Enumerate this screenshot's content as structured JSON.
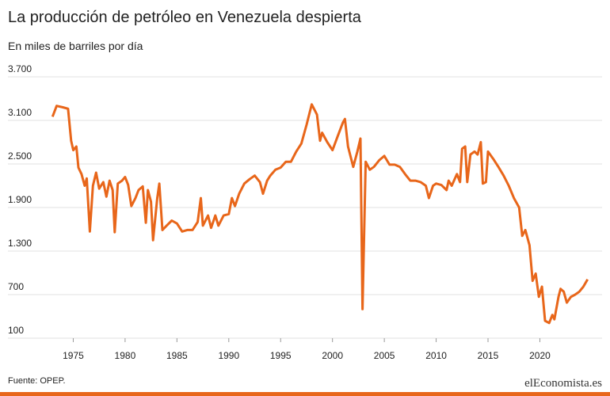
{
  "chart_data": {
    "type": "line",
    "title": "La producción de petróleo en Venezuela despierta",
    "subtitle": "En miles de barriles por día",
    "source": "Fuente: OPEP.",
    "logo": "elEconomista.es",
    "color": "#e8661a",
    "grid": true,
    "x": [
      1973.0,
      1973.4,
      1974.0,
      1974.5,
      1974.8,
      1975.0,
      1975.3,
      1975.5,
      1975.8,
      1976.1,
      1976.3,
      1976.6,
      1976.9,
      1977.2,
      1977.5,
      1977.9,
      1978.2,
      1978.5,
      1978.8,
      1979.0,
      1979.3,
      1979.7,
      1980.0,
      1980.3,
      1980.6,
      1981.0,
      1981.3,
      1981.7,
      1982.0,
      1982.2,
      1982.5,
      1982.7,
      1983.1,
      1983.3,
      1983.6,
      1984.0,
      1984.5,
      1985.0,
      1985.5,
      1986.0,
      1986.5,
      1987.0,
      1987.3,
      1987.5,
      1988.0,
      1988.3,
      1988.7,
      1989.0,
      1989.5,
      1990.0,
      1990.3,
      1990.6,
      1991.0,
      1991.5,
      1992.0,
      1992.5,
      1993.0,
      1993.3,
      1993.7,
      1994.0,
      1994.5,
      1995.0,
      1995.5,
      1996.0,
      1996.5,
      1997.0,
      1997.5,
      1998.0,
      1998.5,
      1998.8,
      1999.0,
      1999.5,
      2000.0,
      2000.5,
      2001.0,
      2001.2,
      2001.5,
      2002.0,
      2002.4,
      2002.7,
      2002.9,
      2003.2,
      2003.6,
      2004.0,
      2004.5,
      2005.0,
      2005.5,
      2006.0,
      2006.5,
      2007.0,
      2007.5,
      2008.0,
      2008.5,
      2009.0,
      2009.3,
      2009.7,
      2010.0,
      2010.5,
      2011.0,
      2011.2,
      2011.5,
      2012.0,
      2012.3,
      2012.5,
      2012.8,
      2013.0,
      2013.3,
      2013.7,
      2014.0,
      2014.3,
      2014.5,
      2014.8,
      2015.0,
      2015.5,
      2016.0,
      2016.5,
      2017.0,
      2017.5,
      2018.0,
      2018.3,
      2018.6,
      2019.0,
      2019.3,
      2019.6,
      2019.9,
      2020.2,
      2020.5,
      2020.9,
      2021.2,
      2021.4,
      2021.8,
      2022.0,
      2022.3,
      2022.6,
      2023.0,
      2023.4,
      2023.8,
      2024.2,
      2024.6
    ],
    "values": [
      3150,
      3300,
      3280,
      3260,
      2820,
      2690,
      2740,
      2450,
      2360,
      2200,
      2300,
      1570,
      2200,
      2380,
      2160,
      2250,
      2050,
      2270,
      2140,
      1560,
      2230,
      2270,
      2320,
      2210,
      1920,
      2030,
      2140,
      2190,
      1690,
      2140,
      1980,
      1450,
      2030,
      2230,
      1590,
      1650,
      1720,
      1680,
      1570,
      1590,
      1590,
      1700,
      2030,
      1650,
      1790,
      1620,
      1790,
      1650,
      1790,
      1810,
      2030,
      1920,
      2090,
      2230,
      2290,
      2340,
      2250,
      2090,
      2270,
      2340,
      2420,
      2450,
      2530,
      2530,
      2670,
      2780,
      3040,
      3320,
      3180,
      2820,
      2930,
      2800,
      2690,
      2880,
      3070,
      3120,
      2740,
      2460,
      2670,
      2850,
      500,
      2530,
      2420,
      2460,
      2550,
      2610,
      2490,
      2490,
      2460,
      2360,
      2270,
      2270,
      2250,
      2200,
      2030,
      2200,
      2230,
      2210,
      2140,
      2270,
      2200,
      2360,
      2250,
      2710,
      2740,
      2250,
      2630,
      2670,
      2630,
      2800,
      2230,
      2250,
      2670,
      2570,
      2460,
      2340,
      2200,
      2030,
      1900,
      1510,
      1590,
      1380,
      890,
      990,
      670,
      810,
      340,
      310,
      420,
      360,
      670,
      780,
      740,
      590,
      670,
      700,
      740,
      810,
      910
    ],
    "xlim": [
      1968.7,
      2026
    ],
    "xticks": [
      1975,
      1980,
      1985,
      1990,
      1995,
      2000,
      2005,
      2010,
      2015,
      2020
    ],
    "ylim": [
      100,
      3700
    ],
    "yticks": [
      100,
      700,
      {
        "value": 1300,
        "label": "1.300"
      },
      {
        "value": 1900,
        "label": "1.900"
      },
      {
        "value": 2500,
        "label": "2.500"
      },
      {
        "value": 3100,
        "label": "3.100"
      },
      {
        "value": 3700,
        "label": "3.700"
      }
    ]
  }
}
